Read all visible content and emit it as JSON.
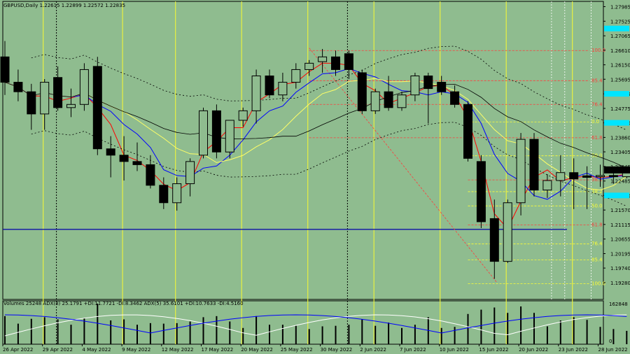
{
  "header": {
    "symbol_line": "GBPUSD,Daily  1.22615  1.22899  1.22572  1.22835",
    "indicator_line": "Volumes 25248   ADX(8) 25.1791  +DI:11.7721  -DI:8.3462   ADX(5) 35.6101  +DI:10.7633  -DI:4.5160"
  },
  "colors": {
    "background": "#8fbc8f",
    "bull_body": "#8fbc8f",
    "bear_body": "#000000",
    "ma_fast": "#ff0000",
    "ma_mid": "#0000ff",
    "ma_slow": "#ffff66",
    "ma_long": "#000000",
    "fib": "#ff3b3b",
    "fib_low": "#ffff33",
    "hline": "#0000aa",
    "volume": "#000000",
    "adx_white": "#ffffff",
    "adx_blue": "#0000ff"
  },
  "chart_data": {
    "type": "candlestick",
    "symbol": "GBPUSD",
    "timeframe": "Daily",
    "ylim": [
      1.1875,
      1.2815
    ],
    "y_ticks": [
      "1.27985",
      "1.27525",
      "1.27065",
      "1.26610",
      "1.26150",
      "1.25695",
      "1.25235",
      "1.24775",
      "1.24320",
      "1.23860",
      "1.23405",
      "1.22945",
      "1.22485",
      "1.22030",
      "1.21570",
      "1.21115",
      "1.20655",
      "1.20195",
      "1.19740",
      "1.19280"
    ],
    "current_price": "1.22835",
    "highlighted_prices": [
      "1.27295",
      "1.25235",
      "1.24320",
      "1.22030"
    ],
    "x_labels": [
      "26 Apr 2022",
      "29 Apr 2022",
      "4 May 2022",
      "9 May 2022",
      "12 May 2022",
      "17 May 2022",
      "20 May 2022",
      "25 May 2022",
      "30 May 2022",
      "2 Jun 2022",
      "7 Jun 2022",
      "10 Jun 2022",
      "15 Jun 2022",
      "20 Jun 2022",
      "23 Jun 2022",
      "28 Jun 2022"
    ],
    "candles": [
      {
        "o": 1.264,
        "h": 1.269,
        "l": 1.252,
        "c": 1.256
      },
      {
        "o": 1.256,
        "h": 1.26,
        "l": 1.25,
        "c": 1.253
      },
      {
        "o": 1.253,
        "h": 1.2555,
        "l": 1.241,
        "c": 1.246
      },
      {
        "o": 1.246,
        "h": 1.257,
        "l": 1.241,
        "c": 1.256
      },
      {
        "o": 1.2575,
        "h": 1.261,
        "l": 1.247,
        "c": 1.248
      },
      {
        "o": 1.248,
        "h": 1.254,
        "l": 1.245,
        "c": 1.249
      },
      {
        "o": 1.249,
        "h": 1.262,
        "l": 1.247,
        "c": 1.26
      },
      {
        "o": 1.261,
        "h": 1.264,
        "l": 1.233,
        "c": 1.235
      },
      {
        "o": 1.235,
        "h": 1.239,
        "l": 1.226,
        "c": 1.233
      },
      {
        "o": 1.233,
        "h": 1.239,
        "l": 1.225,
        "c": 1.231
      },
      {
        "o": 1.231,
        "h": 1.237,
        "l": 1.228,
        "c": 1.23
      },
      {
        "o": 1.23,
        "h": 1.233,
        "l": 1.2225,
        "c": 1.2235
      },
      {
        "o": 1.2235,
        "h": 1.226,
        "l": 1.216,
        "c": 1.218
      },
      {
        "o": 1.218,
        "h": 1.226,
        "l": 1.2155,
        "c": 1.224
      },
      {
        "o": 1.224,
        "h": 1.232,
        "l": 1.22,
        "c": 1.231
      },
      {
        "o": 1.233,
        "h": 1.248,
        "l": 1.232,
        "c": 1.247
      },
      {
        "o": 1.247,
        "h": 1.249,
        "l": 1.232,
        "c": 1.234
      },
      {
        "o": 1.234,
        "h": 1.244,
        "l": 1.232,
        "c": 1.244
      },
      {
        "o": 1.244,
        "h": 1.248,
        "l": 1.242,
        "c": 1.247
      },
      {
        "o": 1.247,
        "h": 1.26,
        "l": 1.243,
        "c": 1.258
      },
      {
        "o": 1.258,
        "h": 1.26,
        "l": 1.251,
        "c": 1.252
      },
      {
        "o": 1.252,
        "h": 1.259,
        "l": 1.25,
        "c": 1.256
      },
      {
        "o": 1.256,
        "h": 1.262,
        "l": 1.254,
        "c": 1.26
      },
      {
        "o": 1.26,
        "h": 1.263,
        "l": 1.258,
        "c": 1.262
      },
      {
        "o": 1.2625,
        "h": 1.2665,
        "l": 1.259,
        "c": 1.264
      },
      {
        "o": 1.264,
        "h": 1.266,
        "l": 1.258,
        "c": 1.26
      },
      {
        "o": 1.265,
        "h": 1.266,
        "l": 1.257,
        "c": 1.26
      },
      {
        "o": 1.259,
        "h": 1.26,
        "l": 1.246,
        "c": 1.247
      },
      {
        "o": 1.247,
        "h": 1.254,
        "l": 1.246,
        "c": 1.253
      },
      {
        "o": 1.253,
        "h": 1.258,
        "l": 1.247,
        "c": 1.248
      },
      {
        "o": 1.248,
        "h": 1.253,
        "l": 1.247,
        "c": 1.252
      },
      {
        "o": 1.252,
        "h": 1.259,
        "l": 1.25,
        "c": 1.258
      },
      {
        "o": 1.258,
        "h": 1.259,
        "l": 1.243,
        "c": 1.254
      },
      {
        "o": 1.256,
        "h": 1.258,
        "l": 1.252,
        "c": 1.253
      },
      {
        "o": 1.253,
        "h": 1.255,
        "l": 1.248,
        "c": 1.249
      },
      {
        "o": 1.249,
        "h": 1.25,
        "l": 1.231,
        "c": 1.232
      },
      {
        "o": 1.231,
        "h": 1.233,
        "l": 1.21,
        "c": 1.212
      },
      {
        "o": 1.213,
        "h": 1.219,
        "l": 1.194,
        "c": 1.1995
      },
      {
        "o": 1.1995,
        "h": 1.219,
        "l": 1.199,
        "c": 1.218
      },
      {
        "o": 1.218,
        "h": 1.24,
        "l": 1.214,
        "c": 1.238
      },
      {
        "o": 1.238,
        "h": 1.24,
        "l": 1.22,
        "c": 1.222
      },
      {
        "o": 1.222,
        "h": 1.227,
        "l": 1.2195,
        "c": 1.225
      },
      {
        "o": 1.225,
        "h": 1.233,
        "l": 1.22,
        "c": 1.2275
      },
      {
        "o": 1.2275,
        "h": 1.232,
        "l": 1.216,
        "c": 1.2255
      },
      {
        "o": 1.2265,
        "h": 1.2295,
        "l": 1.216,
        "c": 1.226
      },
      {
        "o": 1.2262,
        "h": 1.23,
        "l": 1.223,
        "c": 1.2266
      },
      {
        "o": 1.2266,
        "h": 1.229,
        "l": 1.224,
        "c": 1.2262
      },
      {
        "o": 1.2262,
        "h": 1.229,
        "l": 1.2257,
        "c": 1.2283
      }
    ],
    "fib_levels": [
      "100.0",
      "85.4",
      "76.4",
      "61.8",
      "0.0",
      "50.0",
      "38.2",
      "38.2",
      "50.0",
      "61.8",
      "76.4",
      "85.4",
      "100.0"
    ],
    "volumes_max_label": "162848",
    "volumes_min_label": "0"
  }
}
